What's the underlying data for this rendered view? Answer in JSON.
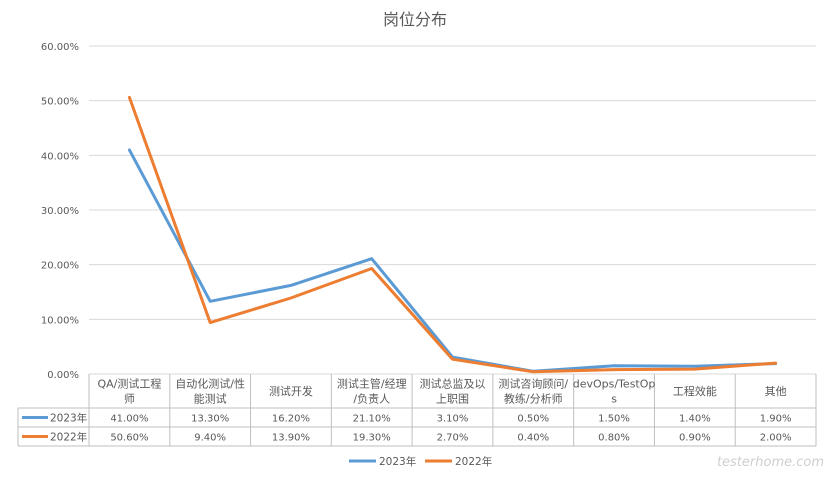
{
  "chart_data": {
    "type": "line",
    "title": "岗位分布",
    "categories": [
      [
        "QA/测试工程",
        "师"
      ],
      [
        "自动化测试/性",
        "能测试"
      ],
      [
        "测试开发"
      ],
      [
        "测试主管/经理",
        "/负责人"
      ],
      [
        "测试总监及以",
        "上职围"
      ],
      [
        "测试咨询顾问/",
        "教练/分析师"
      ],
      [
        "devOps/TestOp",
        "s"
      ],
      [
        "工程效能"
      ],
      [
        "其他"
      ]
    ],
    "series": [
      {
        "name": "2023年",
        "color": "#5b9bd5",
        "values": [
          41.0,
          13.3,
          16.2,
          21.1,
          3.1,
          0.5,
          1.5,
          1.4,
          1.9
        ],
        "labels": [
          "41.00%",
          "13.30%",
          "16.20%",
          "21.10%",
          "3.10%",
          "0.50%",
          "1.50%",
          "1.40%",
          "1.90%"
        ]
      },
      {
        "name": "2022年",
        "color": "#ed7d31",
        "values": [
          50.6,
          9.4,
          13.9,
          19.3,
          2.7,
          0.4,
          0.8,
          0.9,
          2.0
        ],
        "labels": [
          "50.60%",
          "9.40%",
          "13.90%",
          "19.30%",
          "2.70%",
          "0.40%",
          "0.80%",
          "0.90%",
          "2.00%"
        ]
      }
    ],
    "ylim": [
      0,
      60
    ],
    "y_ticks": [
      {
        "value": 0,
        "label": "0.00%"
      },
      {
        "value": 10,
        "label": "10.00%"
      },
      {
        "value": 20,
        "label": "20.00%"
      },
      {
        "value": 30,
        "label": "30.00%"
      },
      {
        "value": 40,
        "label": "40.00%"
      },
      {
        "value": 50,
        "label": "50.00%"
      },
      {
        "value": 60,
        "label": "60.00%"
      }
    ],
    "grid": true,
    "data_table": true,
    "legend": "bottom-center"
  },
  "watermark": "testerhome.com"
}
